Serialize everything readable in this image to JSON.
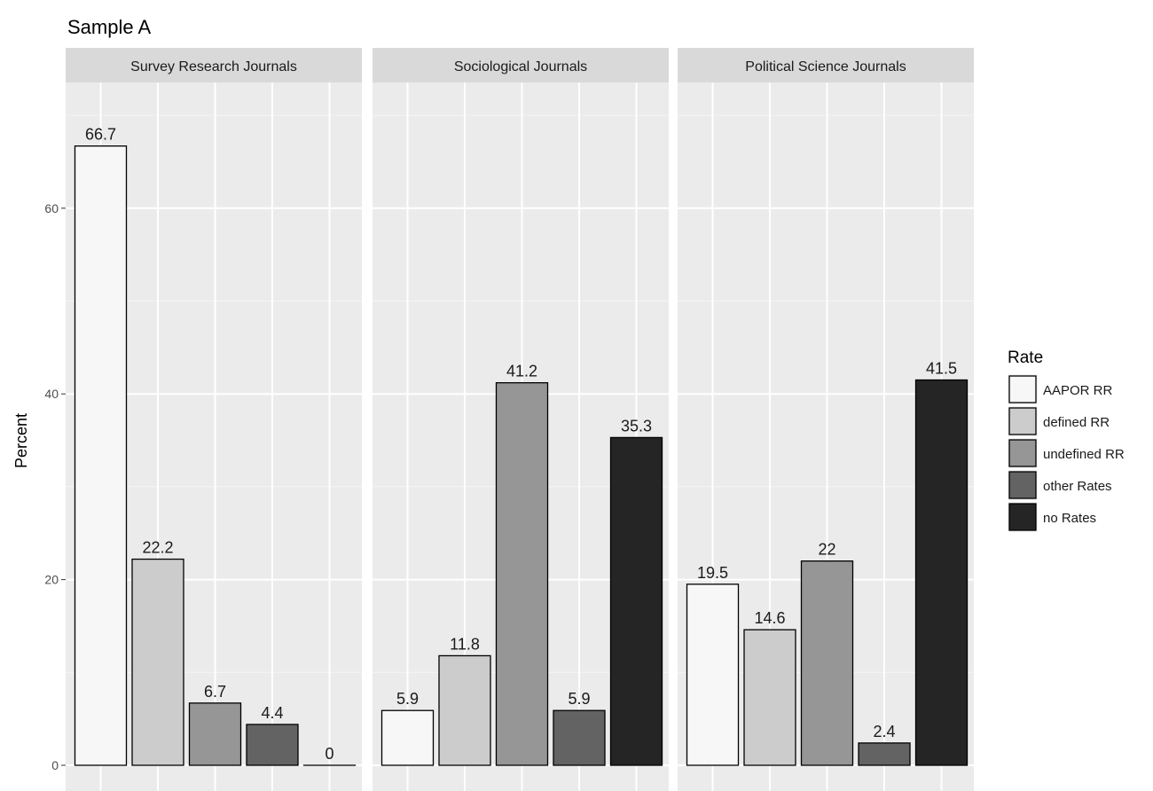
{
  "chart_data": {
    "type": "bar",
    "title": "Sample A",
    "ylabel": "Percent",
    "xlabel": "",
    "ylim": [
      0,
      70
    ],
    "yticks": [
      0,
      20,
      40,
      60
    ],
    "grid": true,
    "legend": {
      "title": "Rate",
      "position": "right",
      "entries": [
        "AAPOR RR",
        "defined RR",
        "undefined RR",
        "other Rates",
        "no Rates"
      ]
    },
    "categories": [
      "AAPOR RR",
      "defined RR",
      "undefined RR",
      "other Rates",
      "no Rates"
    ],
    "colors": [
      "#f7f7f7",
      "#cccccc",
      "#969696",
      "#636363",
      "#252525"
    ],
    "facets": [
      {
        "name": "Survey Research Journals",
        "values": [
          66.7,
          22.2,
          6.7,
          4.4,
          0
        ],
        "labels": [
          "66.7",
          "22.2",
          "6.7",
          "4.4",
          "0"
        ]
      },
      {
        "name": "Sociological Journals",
        "values": [
          5.9,
          11.8,
          41.2,
          5.9,
          35.3
        ],
        "labels": [
          "5.9",
          "11.8",
          "41.2",
          "5.9",
          "35.3"
        ]
      },
      {
        "name": "Political Science Journals",
        "values": [
          19.5,
          14.6,
          22,
          2.4,
          41.5
        ],
        "labels": [
          "19.5",
          "14.6",
          "22",
          "2.4",
          "41.5"
        ]
      }
    ]
  }
}
